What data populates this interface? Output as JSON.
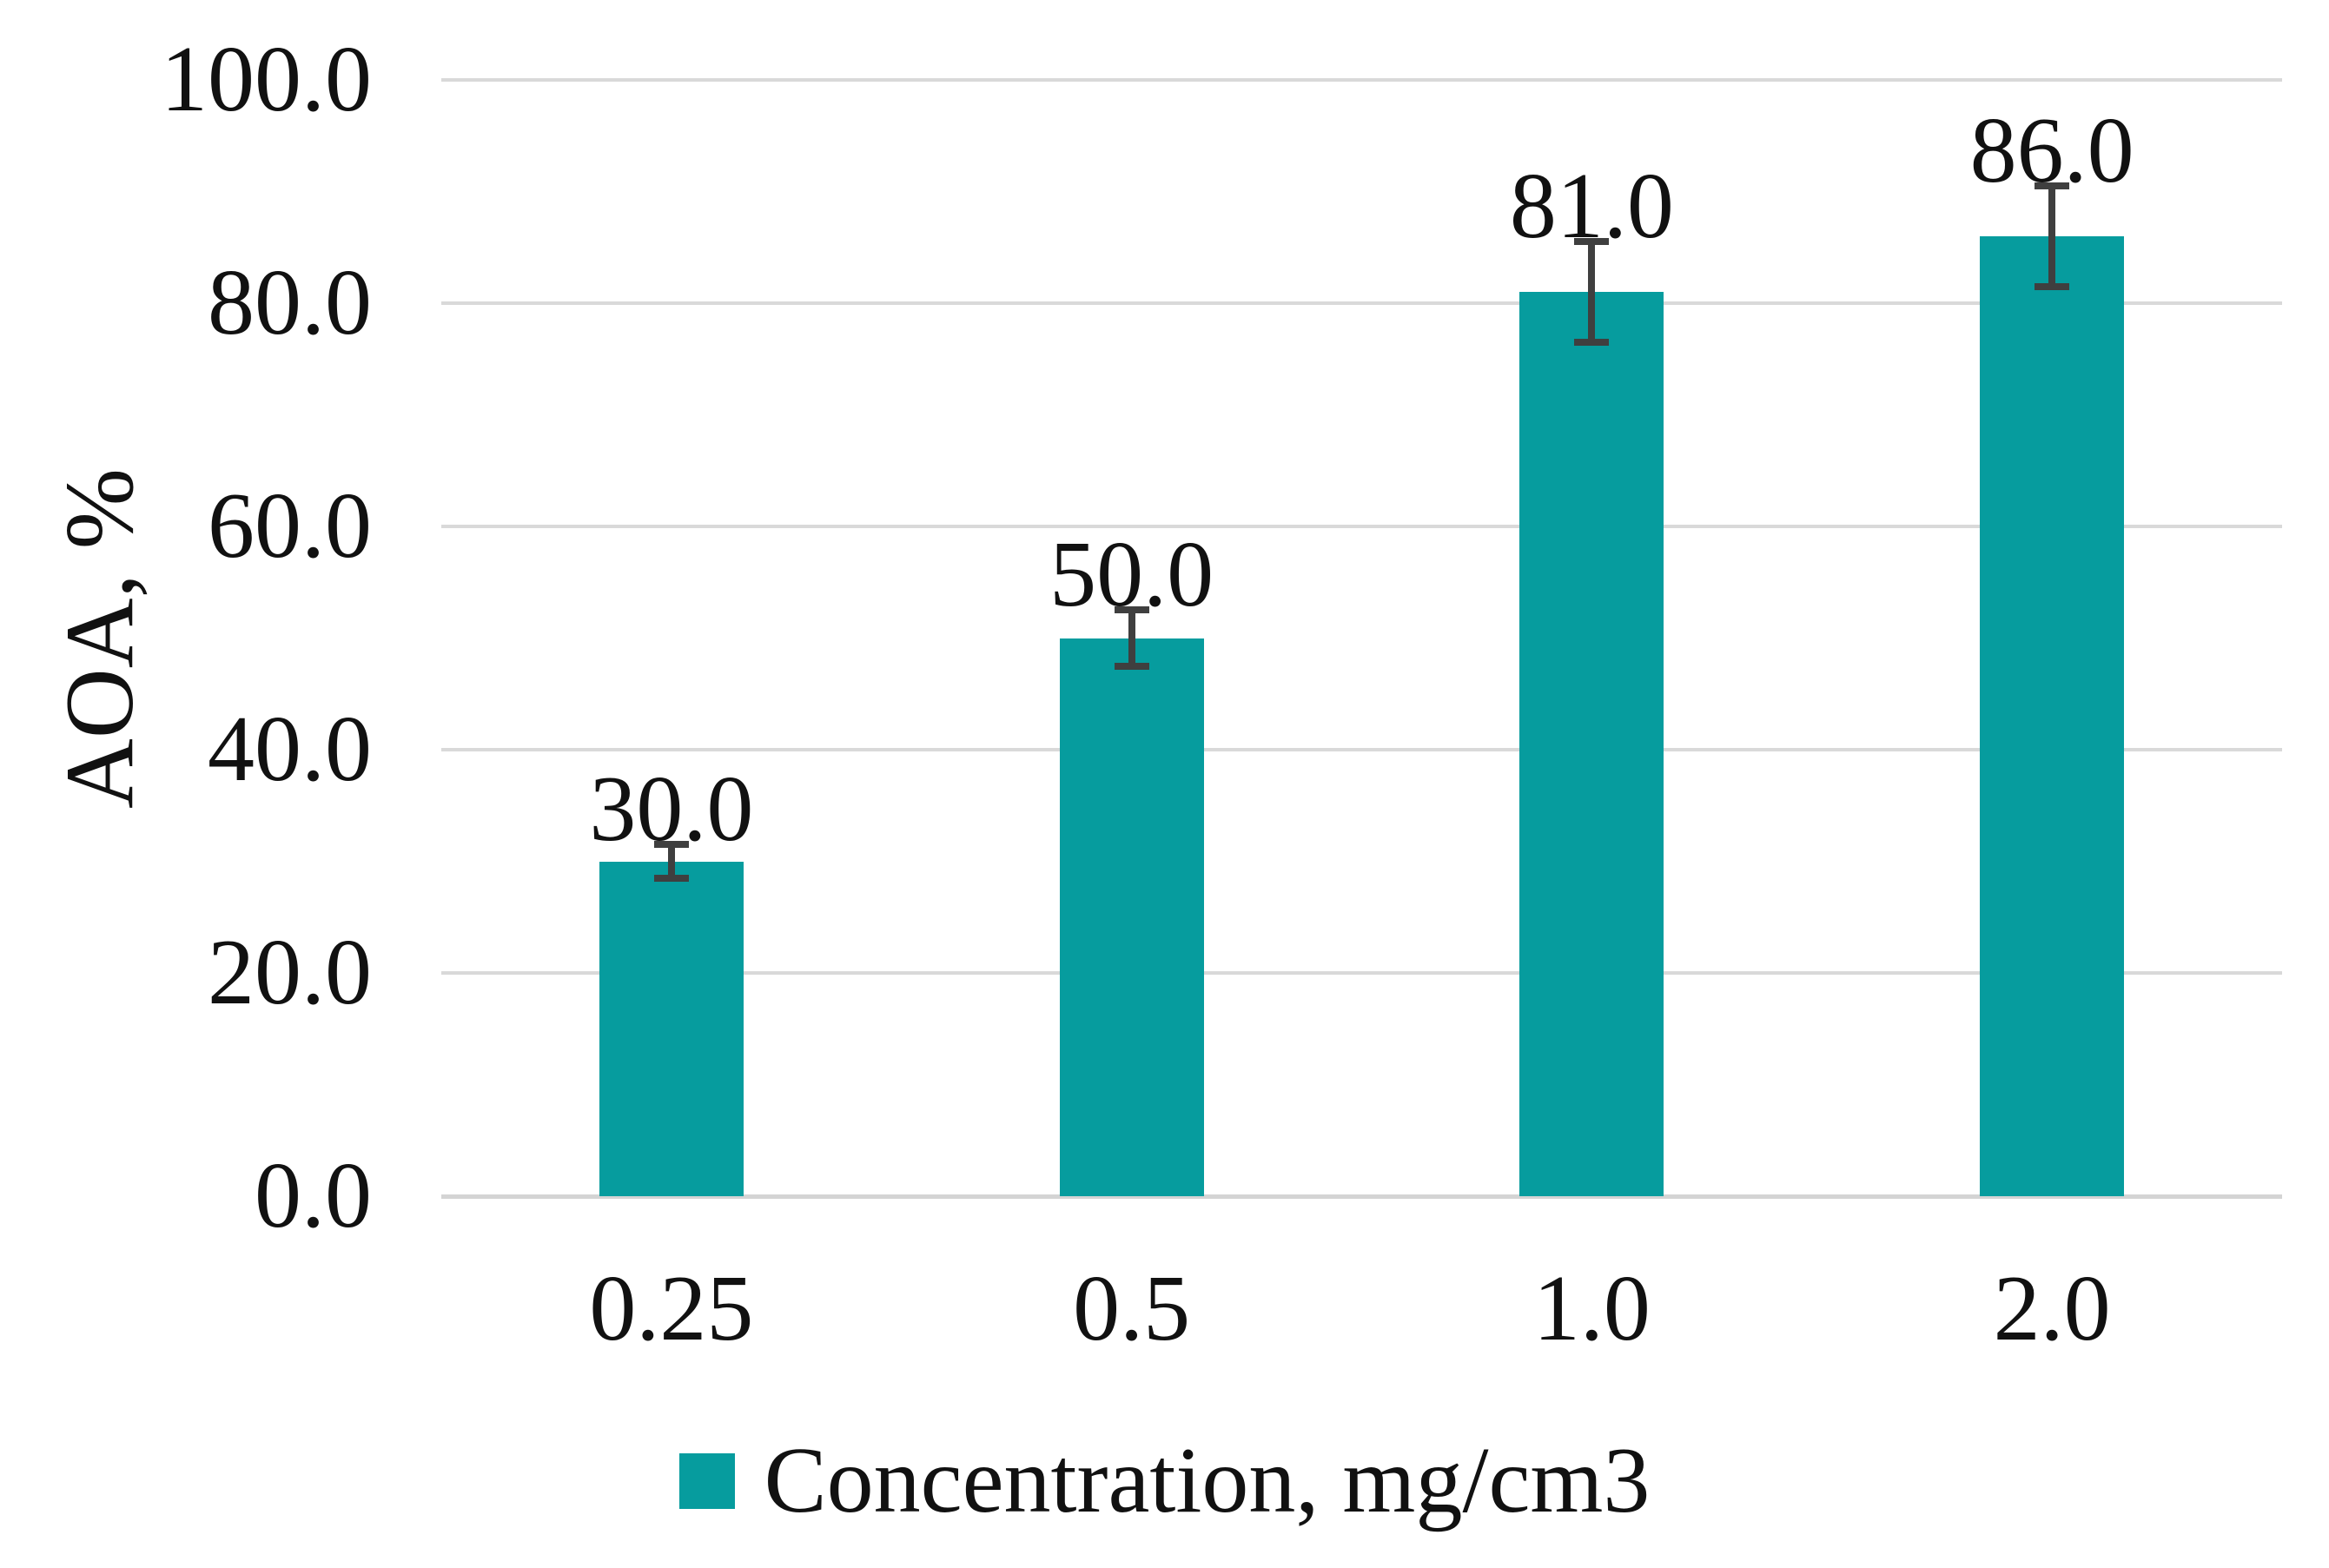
{
  "chart_data": {
    "type": "bar",
    "categories": [
      "0.25",
      "0.5",
      "1.0",
      "2.0"
    ],
    "values": [
      30.0,
      50.0,
      81.0,
      86.0
    ],
    "value_labels": [
      "30.0",
      "50.0",
      "81.0",
      "86.0"
    ],
    "error_bars_plus_minus": [
      1.5,
      2.5,
      4.5,
      4.5
    ],
    "title": "",
    "xlabel": "",
    "ylabel": "AOA, %",
    "ylim": [
      0,
      100
    ],
    "yticks": [
      {
        "value": 0,
        "label": "0.0"
      },
      {
        "value": 20,
        "label": "20.0"
      },
      {
        "value": 40,
        "label": "40.0"
      },
      {
        "value": 60,
        "label": "60.0"
      },
      {
        "value": 80,
        "label": "80.0"
      },
      {
        "value": 100,
        "label": "100.0"
      }
    ],
    "grid": true,
    "legend": {
      "position": "bottom",
      "entries": [
        {
          "label": "Concentration, mg/cm3",
          "color": "#069c9e"
        }
      ]
    },
    "bar_color": "#069c9e",
    "error_bar_color": "#3f3f3f",
    "gridline_color": "#d9d9d9",
    "text_color": "#111111"
  }
}
